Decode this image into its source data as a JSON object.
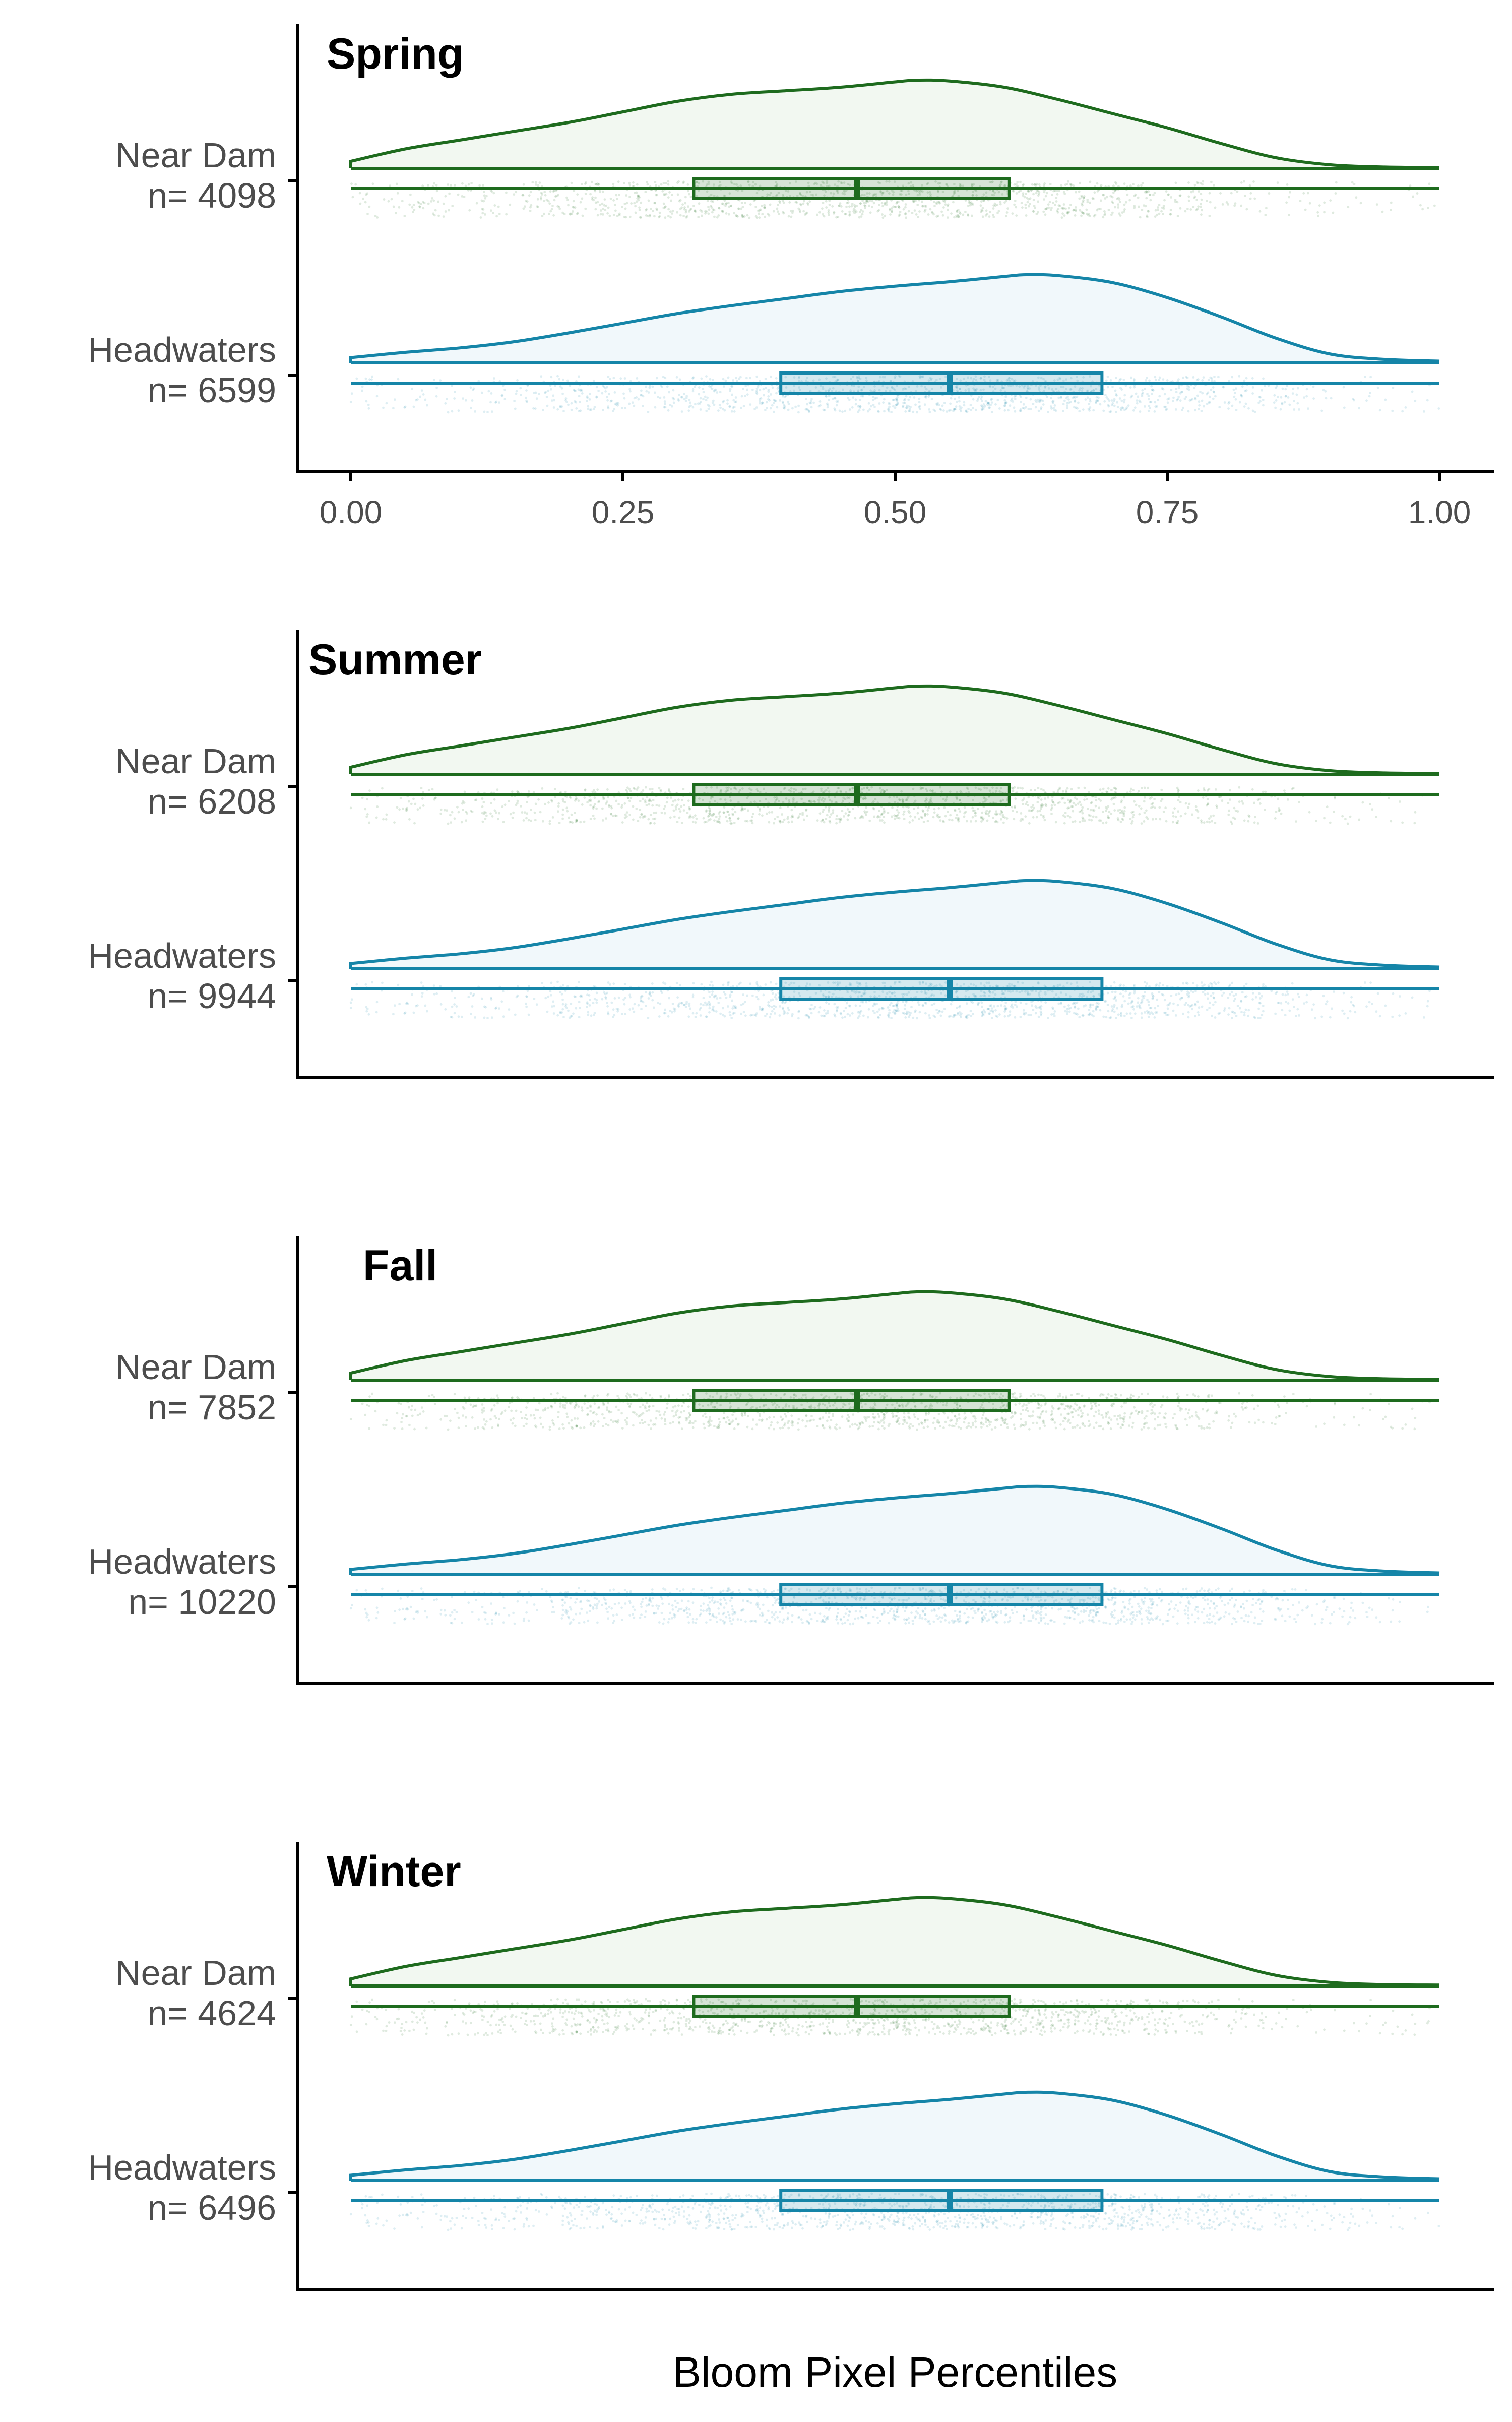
{
  "colors": {
    "near_dam": "#1e6b1e",
    "near_dam_fill": "#f2f8f1",
    "headwaters": "#1585a8",
    "headwaters_fill": "#f1f8fb",
    "axis": "#000000",
    "text": "#4d4d4d"
  },
  "chart_data": {
    "type": "raincloud",
    "xlabel": "Bloom Pixel Percentiles",
    "xlim": [
      0,
      1
    ],
    "x_ticks": [
      0.0,
      0.25,
      0.5,
      0.75,
      1.0
    ],
    "x_tick_labels": [
      "0.00",
      "0.25",
      "0.50",
      "0.75",
      "1.00"
    ],
    "density_shape": {
      "near_dam": {
        "x": [
          0.0,
          0.05,
          0.1,
          0.15,
          0.2,
          0.25,
          0.3,
          0.35,
          0.4,
          0.45,
          0.5,
          0.52,
          0.55,
          0.6,
          0.65,
          0.7,
          0.75,
          0.8,
          0.85,
          0.9,
          0.95,
          1.0
        ],
        "density": [
          0.08,
          0.22,
          0.32,
          0.42,
          0.52,
          0.64,
          0.76,
          0.84,
          0.88,
          0.92,
          0.98,
          1.0,
          0.99,
          0.92,
          0.78,
          0.62,
          0.46,
          0.28,
          0.12,
          0.04,
          0.015,
          0.01
        ]
      },
      "headwaters": {
        "x": [
          0.0,
          0.05,
          0.1,
          0.15,
          0.2,
          0.25,
          0.3,
          0.35,
          0.4,
          0.45,
          0.5,
          0.55,
          0.6,
          0.62,
          0.65,
          0.7,
          0.75,
          0.8,
          0.85,
          0.9,
          0.95,
          1.0
        ],
        "density": [
          0.06,
          0.12,
          0.17,
          0.24,
          0.34,
          0.45,
          0.56,
          0.65,
          0.73,
          0.81,
          0.87,
          0.92,
          0.98,
          1.0,
          0.99,
          0.91,
          0.74,
          0.52,
          0.28,
          0.1,
          0.04,
          0.02
        ]
      }
    },
    "boxplot": {
      "near_dam": {
        "q1": 0.315,
        "median": 0.465,
        "q3": 0.605,
        "min": 0.0,
        "max": 1.0
      },
      "headwaters": {
        "q1": 0.395,
        "median": 0.55,
        "q3": 0.69,
        "min": 0.0,
        "max": 1.0
      }
    },
    "panels": [
      {
        "title": "Spring",
        "show_x_axis": true,
        "groups": [
          {
            "name": "Near Dam",
            "n_label": "n= 4098",
            "key": "near_dam"
          },
          {
            "name": "Headwaters",
            "n_label": "n= 6599",
            "key": "headwaters"
          }
        ]
      },
      {
        "title": "Summer",
        "show_x_axis": false,
        "groups": [
          {
            "name": "Near Dam",
            "n_label": "n= 6208",
            "key": "near_dam"
          },
          {
            "name": "Headwaters",
            "n_label": "n= 9944",
            "key": "headwaters"
          }
        ]
      },
      {
        "title": "Fall",
        "show_x_axis": false,
        "groups": [
          {
            "name": "Near Dam",
            "n_label": "n= 7852",
            "key": "near_dam"
          },
          {
            "name": "Headwaters",
            "n_label": "n= 10220",
            "key": "headwaters"
          }
        ]
      },
      {
        "title": "Winter",
        "show_x_axis": false,
        "groups": [
          {
            "name": "Near Dam",
            "n_label": "n= 4624",
            "key": "near_dam"
          },
          {
            "name": "Headwaters",
            "n_label": "n= 6496",
            "key": "headwaters"
          }
        ]
      }
    ]
  }
}
